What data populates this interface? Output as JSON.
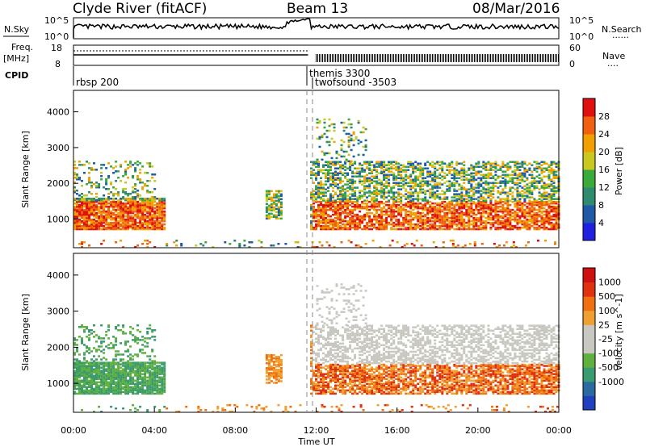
{
  "header": {
    "station": "Clyde River (fitACF)",
    "beam": "Beam 13",
    "date": "08/Mar/2016"
  },
  "panels": {
    "nsky": {
      "left_label": "N.Sky",
      "right_label": "N.Search",
      "right_legend": "......",
      "left_ticks": [
        "10^5",
        "10^0"
      ],
      "right_ticks": [
        "10^5",
        "10^0"
      ]
    },
    "freq": {
      "left_label_1": "Freq.",
      "left_label_2": "[MHz]",
      "right_label": "Nave",
      "right_legend": "....",
      "left_ticks": [
        "18",
        "8"
      ],
      "right_ticks": [
        "60",
        "0"
      ]
    },
    "cpid": {
      "label": "CPID",
      "modes": [
        {
          "name": "rbsp 200",
          "start_hour": 0.0
        },
        {
          "name": "themis 3300",
          "start_hour": 11.6
        },
        {
          "name": "twofsound -3503",
          "start_hour": 11.8
        }
      ]
    }
  },
  "chart_data": [
    {
      "type": "heatmap",
      "ylabel": "Slant Range [km]",
      "colorbar_label": "Power [dB]",
      "colorbar_ticks": [
        "28",
        "24",
        "20",
        "16",
        "12",
        "8",
        "4"
      ],
      "colors": [
        "#2020e0",
        "#1e5aa8",
        "#2e8b6e",
        "#3aaa3a",
        "#c8c820",
        "#f0a000",
        "#f06010",
        "#e01010"
      ],
      "ylim": [
        200,
        4600
      ],
      "yticks": [
        "4000",
        "3000",
        "2000",
        "1000"
      ]
    },
    {
      "type": "heatmap",
      "ylabel": "Slant Range [km]",
      "colorbar_label": "Velocity [m s^-1]",
      "colorbar_ticks": [
        "1000",
        "500",
        "100",
        "25",
        "-25",
        "-100",
        "-500",
        "-1000"
      ],
      "colors": [
        "#2040c0",
        "#2a6aa0",
        "#3a9a70",
        "#60b040",
        "#c8c8c0",
        "#c8c8c0",
        "#f0a030",
        "#f07010",
        "#e03010",
        "#d01010"
      ],
      "ylim": [
        200,
        4600
      ],
      "yticks": [
        "4000",
        "3000",
        "2000",
        "1000"
      ],
      "x_ticks": [
        "00:00",
        "04:00",
        "08:00",
        "12:00",
        "16:00",
        "20:00",
        "00:00"
      ],
      "xlabel": "Time UT"
    }
  ]
}
